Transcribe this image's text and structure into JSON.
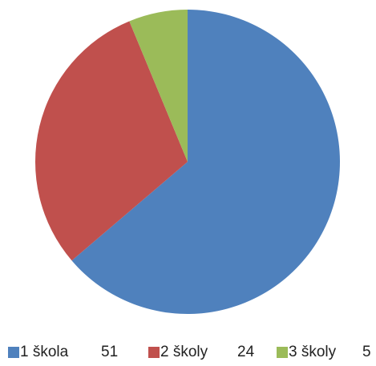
{
  "chart_data": {
    "type": "pie",
    "categories": [
      "1 škola",
      "2 školy",
      "3 školy"
    ],
    "values": [
      51,
      24,
      5
    ],
    "colors": [
      "#4f81bd",
      "#c0504d",
      "#9bbb59"
    ],
    "legend": "bottom"
  }
}
